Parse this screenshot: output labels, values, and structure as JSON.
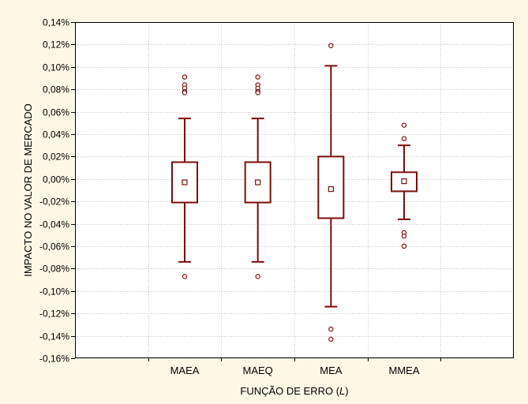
{
  "chart_data": {
    "type": "boxplot",
    "xlabel_prefix": "FUNÇÃO DE ERRO (",
    "xlabel_italic": "L",
    "xlabel_suffix": ")",
    "ylabel": "IMPACTO NO VALOR DE MERCADO",
    "ylim": [
      -0.16,
      0.14
    ],
    "yticks": [
      0.14,
      0.12,
      0.1,
      0.08,
      0.06,
      0.04,
      0.02,
      0.0,
      -0.02,
      -0.04,
      -0.06,
      -0.08,
      -0.1,
      -0.12,
      -0.14,
      -0.16
    ],
    "ytick_labels": [
      "0,14%",
      "0,12%",
      "0,10%",
      "0,08%",
      "0,06%",
      "0,04%",
      "0,02%",
      "0,00%",
      "-0,02%",
      "-0,04%",
      "-0,06%",
      "-0,08%",
      "-0,10%",
      "-0,12%",
      "-0,14%",
      "-0,16%"
    ],
    "grid": true,
    "slots": 6,
    "categories": [
      "MAEA",
      "MAEQ",
      "MEA",
      "MMEA"
    ],
    "category_slots": [
      1,
      2,
      3,
      4
    ],
    "series": [
      {
        "category": "MAEA",
        "median": -0.003,
        "q1": -0.021,
        "q3": 0.015,
        "whisker_low": -0.074,
        "whisker_high": 0.054,
        "outliers": [
          0.091,
          0.084,
          0.081,
          0.078,
          0.077,
          -0.087
        ]
      },
      {
        "category": "MAEQ",
        "median": -0.003,
        "q1": -0.021,
        "q3": 0.015,
        "whisker_low": -0.074,
        "whisker_high": 0.054,
        "outliers": [
          0.091,
          0.084,
          0.081,
          0.078,
          0.077,
          -0.087
        ]
      },
      {
        "category": "MEA",
        "median": -0.009,
        "q1": -0.035,
        "q3": 0.02,
        "whisker_low": -0.114,
        "whisker_high": 0.101,
        "outliers": [
          0.119,
          -0.134,
          -0.143
        ]
      },
      {
        "category": "MMEA",
        "median": -0.002,
        "q1": -0.011,
        "q3": 0.006,
        "whisker_low": -0.036,
        "whisker_high": 0.03,
        "outliers": [
          0.048,
          0.036,
          -0.048,
          -0.051,
          -0.06
        ]
      }
    ],
    "colors": {
      "box": "#7b0d0d",
      "grid": "#c4c4c4",
      "plot_bg": "#ffffff",
      "page_bg": "#fdf8e6"
    }
  }
}
